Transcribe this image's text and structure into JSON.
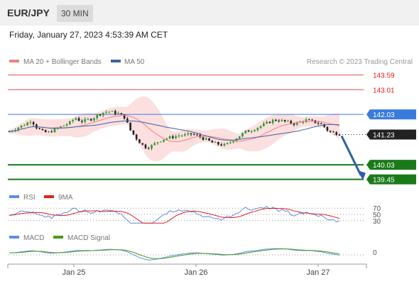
{
  "header": {
    "pair": "EUR/JPY",
    "timeframe": "30 MIN",
    "datetime": "Friday, January 27, 2023 4:53:39 AM CET"
  },
  "legend": {
    "ma20_label": "MA 20 + Bollinger Bands",
    "ma50_label": "MA 50",
    "credit": "Research © 2023 Trading Central",
    "ma20_color": "#f08080",
    "ma50_color": "#3a62a7"
  },
  "rsi_legend": {
    "rsi": "RSI",
    "ma9": "9MA",
    "rsi_color": "#5b8ee6",
    "ma9_color": "#e02020"
  },
  "macd_legend": {
    "macd": "MACD",
    "signal": "MACD Signal",
    "macd_color": "#5b8ee6",
    "signal_color": "#4a9a1a"
  },
  "chart_data": {
    "type": "candlestick",
    "x_ticks": [
      "Jan 25",
      "Jan 26",
      "Jan 27"
    ],
    "y_range": [
      139.3,
      143.75
    ],
    "levels": [
      {
        "value": 143.59,
        "label": "143.59",
        "kind": "resistance",
        "color": "#e02020"
      },
      {
        "value": 143.01,
        "label": "143.01",
        "kind": "resistance",
        "color": "#e02020"
      },
      {
        "value": 142.03,
        "label": "142.03",
        "kind": "pivot",
        "color": "#3a7be0"
      },
      {
        "value": 141.23,
        "label": "141.23",
        "kind": "last",
        "color": "#222222"
      },
      {
        "value": 140.03,
        "label": "140.03",
        "kind": "support",
        "color": "#1a7a1a"
      },
      {
        "value": 139.45,
        "label": "139.45",
        "kind": "support",
        "color": "#1a7a1a"
      }
    ],
    "price_path": [
      141.35,
      141.45,
      141.55,
      141.65,
      141.8,
      141.5,
      141.35,
      141.3,
      141.4,
      141.5,
      141.6,
      141.7,
      141.9,
      141.75,
      141.8,
      141.85,
      142.0,
      142.1,
      142.15,
      142.1,
      142.05,
      141.9,
      141.4,
      141.1,
      140.85,
      140.7,
      140.8,
      140.95,
      141.05,
      141.1,
      141.15,
      141.2,
      141.2,
      141.25,
      141.2,
      141.1,
      141.0,
      140.9,
      140.85,
      140.8,
      140.9,
      141.05,
      141.2,
      141.35,
      141.4,
      141.5,
      141.6,
      141.7,
      141.8,
      141.8,
      141.75,
      141.7,
      141.65,
      141.75,
      141.8,
      141.75,
      141.7,
      141.6,
      141.35,
      141.3,
      141.25
    ],
    "rsi": {
      "levels": [
        70,
        50,
        30
      ]
    },
    "macd": {
      "levels": [
        0
      ]
    },
    "arrow": {
      "from": 141.23,
      "to": 139.45,
      "direction": "down"
    }
  }
}
